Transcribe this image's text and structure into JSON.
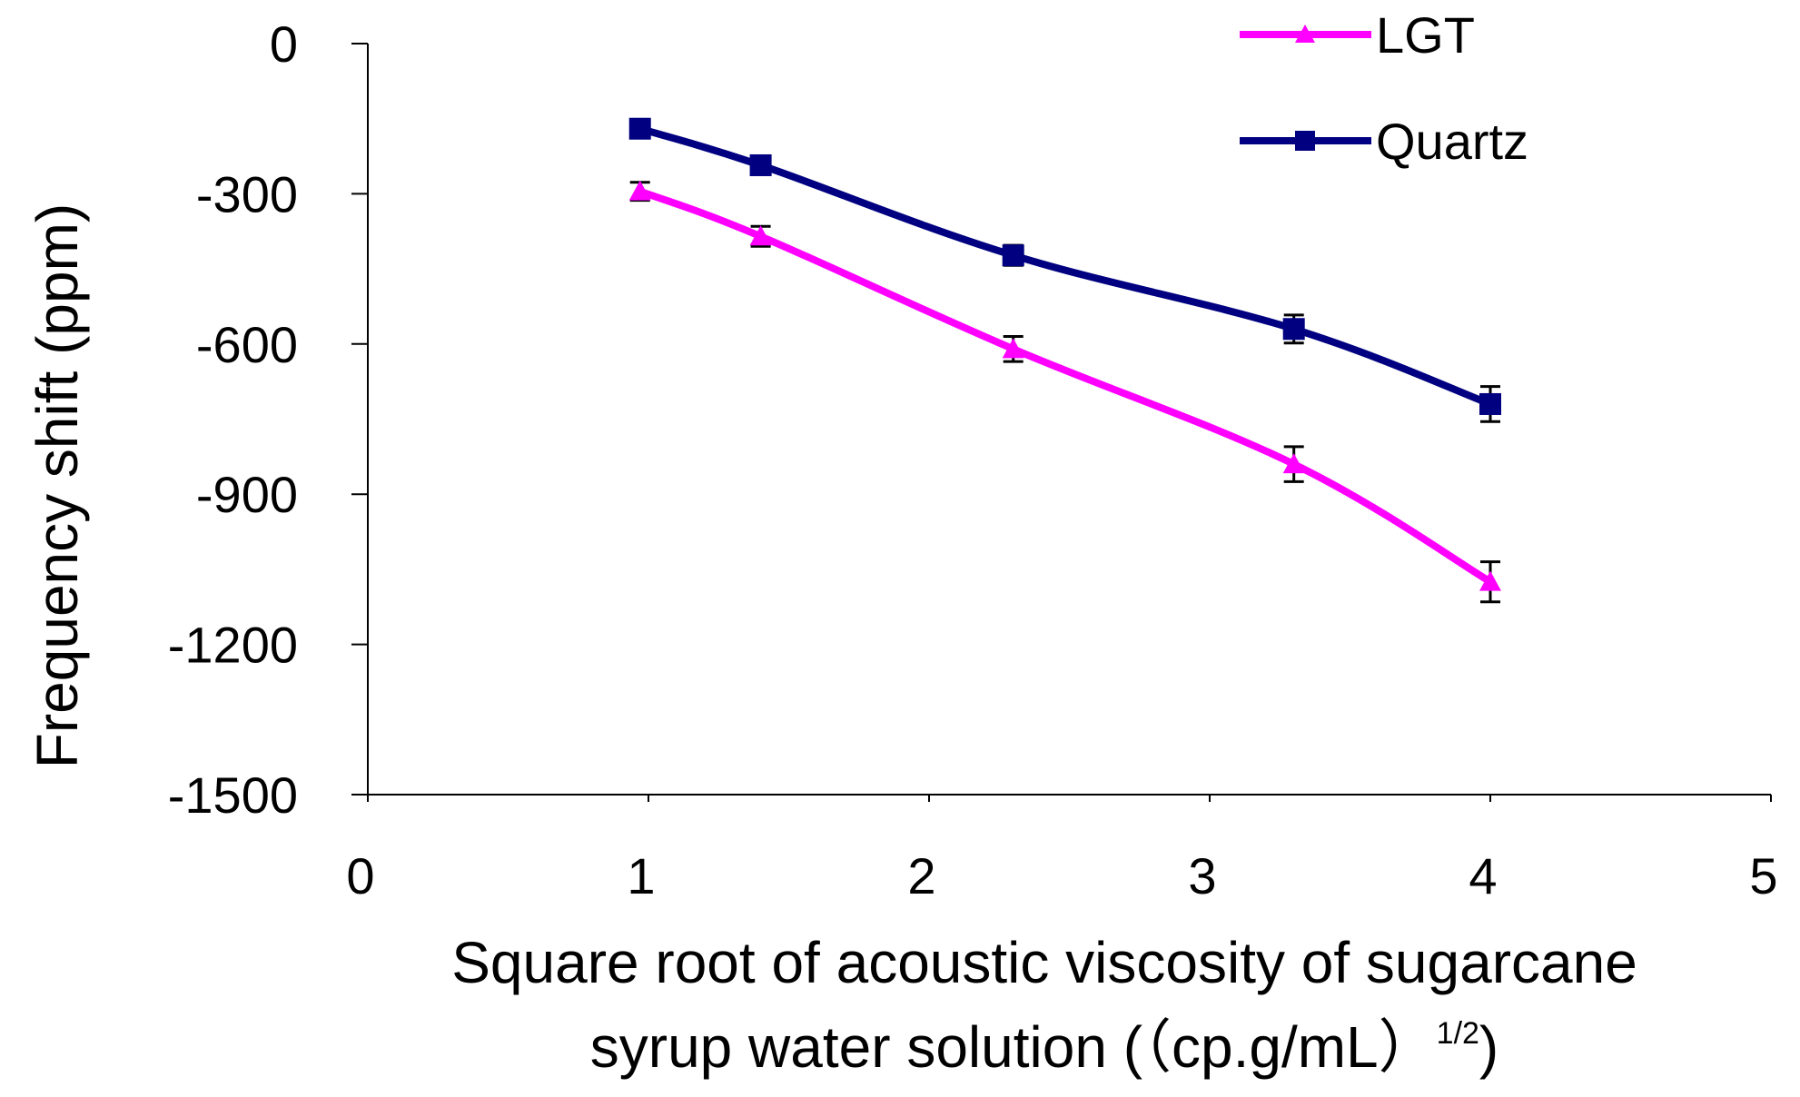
{
  "chart_data": {
    "type": "line",
    "title": "",
    "xlabel_line1": "Square root of acoustic viscosity  of sugarcane",
    "xlabel_line2_main": "syrup water solution (（cp.g/mL）",
    "xlabel_line2_sup": "1/2",
    "xlabel_line2_end": ")",
    "ylabel": "Frequency shift (ppm)",
    "xlim": [
      0,
      5
    ],
    "ylim": [
      -1500,
      0
    ],
    "xticks": [
      0,
      1,
      2,
      3,
      4,
      5
    ],
    "yticks": [
      0,
      -300,
      -600,
      -900,
      -1200,
      -1500
    ],
    "xtick_labels": [
      "0",
      "1",
      "2",
      "3",
      "4",
      "5"
    ],
    "ytick_labels": [
      "0",
      "-300",
      "-600",
      "-900",
      "-1200",
      "-1500"
    ],
    "grid": false,
    "legend_position": "top-right",
    "series": [
      {
        "name": "LGT",
        "color": "#ff00ff",
        "marker": "triangle",
        "x": [
          0.97,
          1.4,
          2.3,
          3.3,
          4.0
        ],
        "y": [
          -295,
          -385,
          -610,
          -840,
          -1075
        ],
        "error": [
          18,
          20,
          25,
          35,
          40
        ]
      },
      {
        "name": "Quartz",
        "color": "#000080",
        "marker": "square",
        "x": [
          0.97,
          1.4,
          2.3,
          3.3,
          4.0
        ],
        "y": [
          -170,
          -243,
          -423,
          -570,
          -720
        ],
        "error": [
          15,
          15,
          20,
          28,
          35
        ]
      }
    ]
  }
}
